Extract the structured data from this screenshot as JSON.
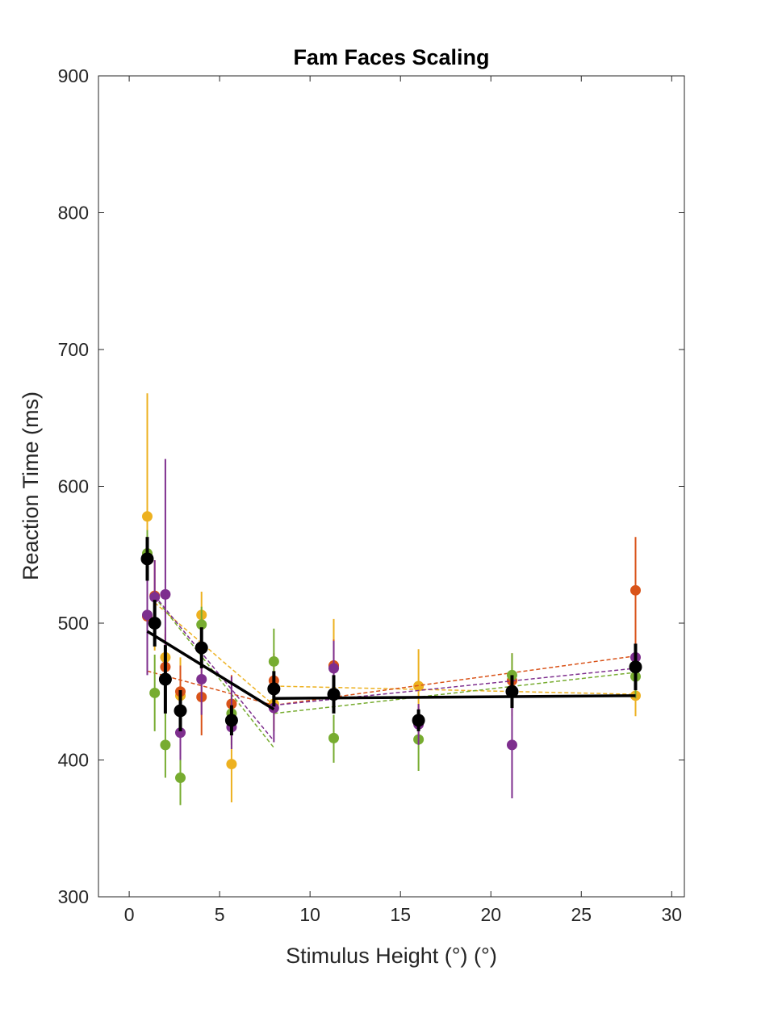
{
  "chart_data": {
    "type": "scatter",
    "title": "Fam Faces Scaling",
    "xlabel": "Stimulus Height (°) (°)",
    "ylabel": "Reaction Time (ms)",
    "xlim": [
      -1.7,
      30.7
    ],
    "ylim": [
      300,
      900
    ],
    "xticks": [
      0,
      5,
      10,
      15,
      20,
      25,
      30
    ],
    "yticks": [
      300,
      400,
      500,
      600,
      700,
      800,
      900
    ],
    "grid": false,
    "legend": "none",
    "x": [
      1,
      1.41,
      2,
      2.83,
      4,
      5.66,
      8,
      11.31,
      16,
      21.17,
      28
    ],
    "series": [
      {
        "color": "#EDB120",
        "y": [
          578,
          500,
          475,
          447,
          506,
          397,
          441,
          469,
          454,
          451,
          447
        ],
        "err_low": [
          550,
          480,
          455,
          427,
          483,
          369,
          421,
          437,
          427,
          432,
          432
        ],
        "err_high": [
          668,
          515,
          497,
          475,
          523,
          425,
          461,
          503,
          481,
          468,
          463
        ],
        "fit": [
          [
            1.41,
            515
          ],
          [
            8,
            440
          ],
          [
            8,
            454
          ],
          [
            28,
            448
          ]
        ]
      },
      {
        "color": "#D95319",
        "y": [
          505,
          520,
          468,
          450,
          446,
          441,
          458,
          469,
          427,
          458,
          524
        ],
        "err_low": [
          470,
          490,
          440,
          426,
          418,
          420,
          437,
          450,
          417,
          438,
          483
        ],
        "err_high": [
          545,
          546,
          492,
          469,
          474,
          462,
          478,
          488,
          440,
          478,
          563
        ],
        "fit": [
          [
            1,
            465
          ],
          [
            8,
            440
          ],
          [
            8,
            440
          ],
          [
            28,
            476
          ]
        ]
      },
      {
        "color": "#77AC30",
        "y": [
          551,
          449,
          411,
          387,
          499,
          434,
          472,
          416,
          415,
          462,
          461
        ],
        "err_low": [
          537,
          421,
          387,
          367,
          479,
          411,
          449,
          398,
          392,
          443,
          445
        ],
        "err_high": [
          568,
          477,
          435,
          407,
          512,
          457,
          496,
          433,
          437,
          478,
          478
        ],
        "fit": [
          [
            1.41,
            519
          ],
          [
            8,
            409
          ],
          [
            8,
            434
          ],
          [
            28,
            464
          ]
        ]
      },
      {
        "color": "#7E2F8E",
        "y": [
          506,
          519,
          521,
          420,
          459,
          424,
          438,
          467,
          426,
          411,
          475
        ],
        "err_low": [
          462,
          490,
          443,
          400,
          433,
          408,
          413,
          450,
          411,
          372,
          465
        ],
        "err_high": [
          550,
          546,
          620,
          440,
          486,
          461,
          463,
          487,
          441,
          449,
          485
        ],
        "fit": [
          [
            1.41,
            520
          ],
          [
            8,
            414
          ],
          [
            8,
            440
          ],
          [
            28,
            467
          ]
        ]
      },
      {
        "color": "#000000",
        "y": [
          547,
          500,
          459,
          436,
          482,
          429,
          452,
          448,
          429,
          450,
          468
        ],
        "err_low": [
          531,
          483,
          434,
          421,
          467,
          418,
          439,
          434,
          421,
          438,
          451
        ],
        "err_high": [
          563,
          517,
          484,
          451,
          497,
          440,
          465,
          462,
          437,
          462,
          485
        ],
        "fit": [
          [
            1,
            494
          ],
          [
            8,
            437
          ],
          [
            8,
            445
          ],
          [
            28,
            447
          ]
        ]
      }
    ]
  }
}
